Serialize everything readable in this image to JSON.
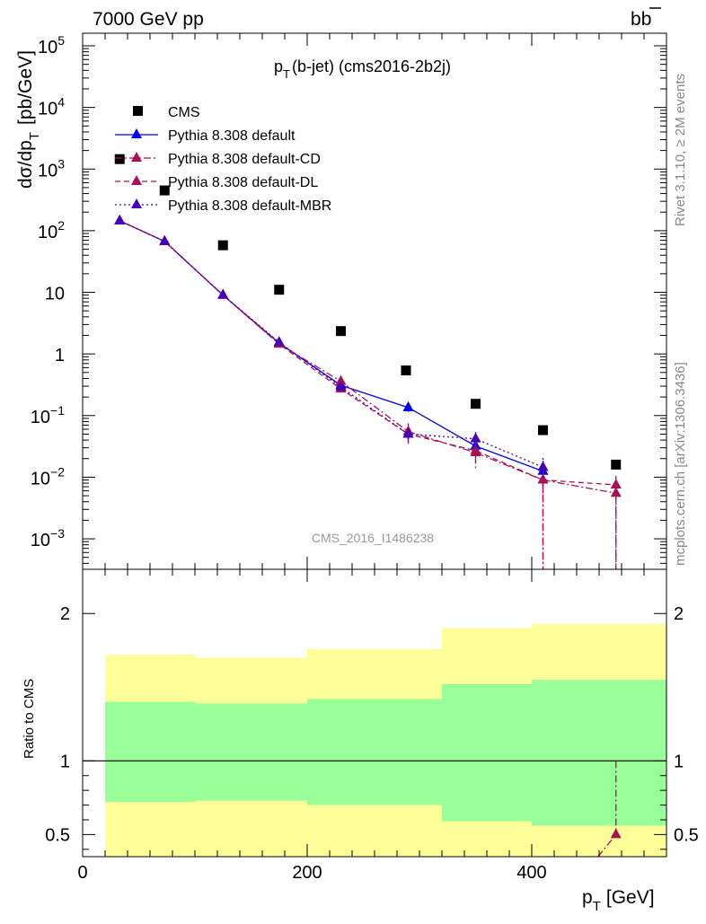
{
  "header": {
    "left": "7000 GeV pp",
    "right_main": "b",
    "right_bar": "b"
  },
  "side_text": {
    "rivet": "Rivet 3.1.10, ≥ 2M events",
    "mcplots": "mcplots.cern.ch [arXiv:1306.3436]"
  },
  "chart_data": [
    {
      "type": "scatter",
      "panel": "main",
      "title_main": "p",
      "title_sub": "T",
      "title_rest": "(b-jet) (cms2016-2b2j)",
      "ylabel_main": "dσ/dp",
      "ylabel_sub": "T",
      "ylabel_unit": "[pb/GeV]",
      "watermark": "CMS_2016_I1486238",
      "y_scale": "log",
      "xlim": [
        0,
        520
      ],
      "ylim": [
        0.00032,
        160000
      ],
      "x_ticks": [
        "0",
        "200",
        "400"
      ],
      "y_ticks": [
        {
          "value": 0.001,
          "base": "10",
          "exp": "−3"
        },
        {
          "value": 0.01,
          "base": "10",
          "exp": "−2"
        },
        {
          "value": 0.1,
          "base": "10",
          "exp": "−1"
        },
        {
          "value": 1,
          "base": "1",
          "exp": ""
        },
        {
          "value": 10,
          "base": "10",
          "exp": ""
        },
        {
          "value": 100,
          "base": "10",
          "exp": "2"
        },
        {
          "value": 1000,
          "base": "10",
          "exp": "3"
        },
        {
          "value": 10000,
          "base": "10",
          "exp": "4"
        },
        {
          "value": 100000,
          "base": "10",
          "exp": "5"
        }
      ],
      "series": [
        {
          "name": "CMS",
          "color": "#000000",
          "marker": "square",
          "line": "none",
          "x": [
            33,
            73,
            125,
            175,
            230,
            288,
            350,
            410,
            475
          ],
          "y": [
            1450,
            450,
            58,
            11,
            2.35,
            0.54,
            0.155,
            0.058,
            0.016
          ]
        },
        {
          "name": "Pythia 8.308 default",
          "color": "#0000ee",
          "marker": "triangle",
          "line": "solid",
          "x": [
            33,
            73,
            125,
            175,
            230,
            290,
            350,
            410
          ],
          "y": [
            145,
            67,
            9.0,
            1.5,
            0.31,
            0.135,
            0.032,
            0.0125
          ],
          "yerr_lo": [
            0,
            0,
            0,
            0,
            0.03,
            0.02,
            0.008,
            0.006
          ],
          "yerr_hi": [
            0,
            0,
            0,
            0,
            0.03,
            0.02,
            0.008,
            0.006
          ]
        },
        {
          "name": "Pythia 8.308 default-CD",
          "color": "#aa1155",
          "marker": "triangle",
          "line": "dashdot",
          "x": [
            33,
            73,
            125,
            175,
            230,
            290,
            350,
            410,
            475
          ],
          "y": [
            145,
            67,
            9.0,
            1.45,
            0.36,
            0.055,
            0.025,
            0.009,
            0.0055
          ],
          "yerr_lo": [
            0,
            0,
            0,
            0,
            0.06,
            0.02,
            0.012,
            0.009,
            0.0055
          ],
          "yerr_hi": [
            0,
            0,
            0,
            0,
            0.06,
            0.02,
            0.012,
            0.006,
            0.003
          ]
        },
        {
          "name": "Pythia 8.308 default-DL",
          "color": "#aa1155",
          "marker": "triangle",
          "line": "dashed",
          "x": [
            33,
            73,
            125,
            175,
            230,
            290,
            350,
            410,
            475
          ],
          "y": [
            145,
            67,
            9.0,
            1.45,
            0.27,
            0.05,
            0.027,
            0.009,
            0.0075
          ],
          "yerr_lo": [
            0,
            0,
            0,
            0,
            0.04,
            0.015,
            0.01,
            0.004,
            0.002
          ],
          "yerr_hi": [
            0,
            0,
            0,
            0,
            0.04,
            0.015,
            0.01,
            0.004,
            0.003
          ]
        },
        {
          "name": "Pythia 8.308 default-MBR",
          "color": "#4400bb",
          "marker": "triangle",
          "line": "dotted",
          "x": [
            33,
            73,
            125,
            175,
            230,
            290,
            350,
            410
          ],
          "y": [
            145,
            67,
            9.0,
            1.55,
            0.29,
            0.05,
            0.042,
            0.0145
          ],
          "yerr_lo": [
            0,
            0,
            0,
            0,
            0.03,
            0.012,
            0.012,
            0.006
          ],
          "yerr_hi": [
            0,
            0,
            0,
            0,
            0.03,
            0.012,
            0.012,
            0.006
          ]
        }
      ]
    },
    {
      "type": "area",
      "panel": "ratio",
      "ylabel": "Ratio to CMS",
      "xlabel_main": "p",
      "xlabel_sub": "T",
      "xlabel_unit": "[GeV]",
      "xlim": [
        0,
        520
      ],
      "ylim": [
        0.35,
        2.3
      ],
      "y_ticks": [
        "0.5",
        "1",
        "2"
      ],
      "x_ticks": [
        "0",
        "200",
        "400"
      ],
      "bins": [
        {
          "x_lo": 20,
          "x_hi": 100,
          "yellow": [
            0.72,
            1.72
          ],
          "green": [
            1.0,
            1.4
          ]
        },
        {
          "x_lo": 100,
          "x_hi": 200,
          "yellow": [
            0.73,
            1.7
          ],
          "green": [
            1.0,
            1.39
          ]
        },
        {
          "x_lo": 200,
          "x_hi": 320,
          "yellow": [
            0.7,
            1.76
          ],
          "green": [
            1.0,
            1.42
          ]
        },
        {
          "x_lo": 320,
          "x_hi": 400,
          "yellow": [
            0.59,
            1.9
          ],
          "green": [
            1.0,
            1.52
          ]
        },
        {
          "x_lo": 400,
          "x_hi": 520,
          "yellow": [
            0.56,
            1.93
          ],
          "green": [
            1.0,
            1.55
          ]
        }
      ],
      "bin_yellow_low_extra": [
        0.69,
        0.56
      ],
      "colors": {
        "yellow": "#ffff99",
        "green": "#99ff99"
      },
      "series": [
        {
          "name": "Pythia 8.308 default-CD",
          "color": "#aa1155",
          "x": [
            475
          ],
          "y": [
            0.5
          ]
        }
      ]
    }
  ]
}
